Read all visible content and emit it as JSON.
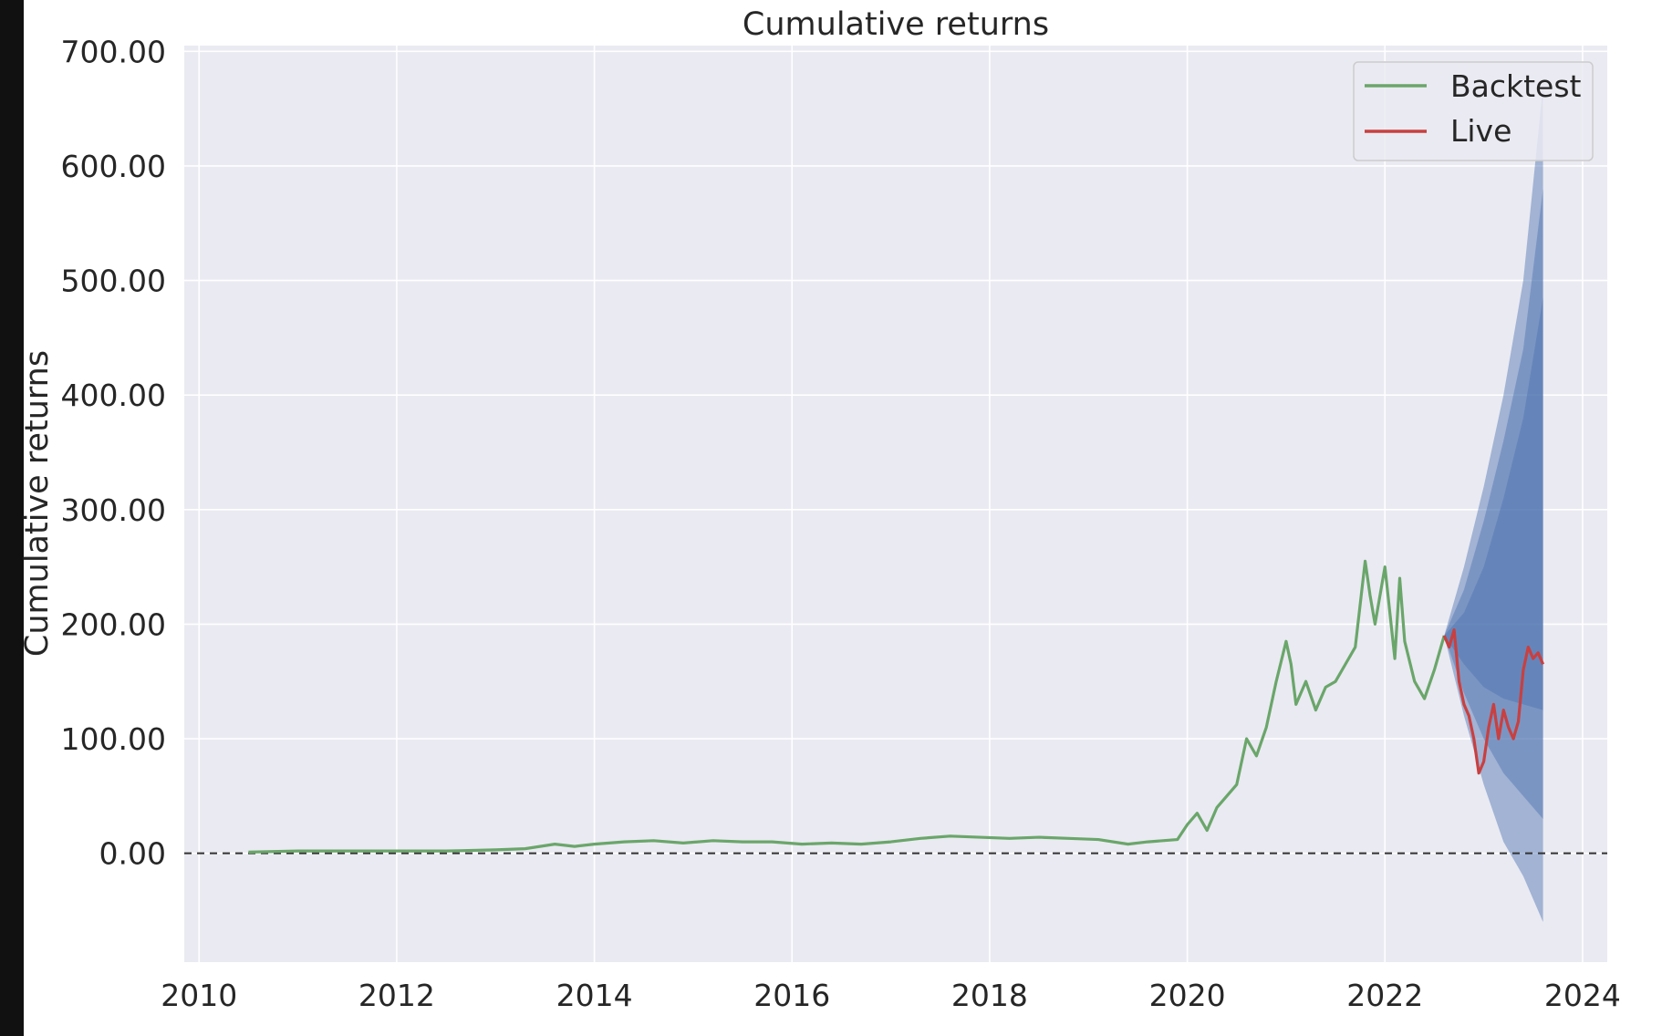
{
  "chart_data": {
    "type": "line",
    "title": "Cumulative returns",
    "xlabel": "",
    "ylabel": "Cumulative returns",
    "xlim": [
      2009.85,
      2024.25
    ],
    "ylim": [
      -95,
      705
    ],
    "x_ticks": [
      2010,
      2012,
      2014,
      2016,
      2018,
      2020,
      2022,
      2024
    ],
    "y_ticks": [
      0,
      100,
      200,
      300,
      400,
      500,
      600,
      700
    ],
    "y_tick_labels": [
      "0.00",
      "100.00",
      "200.00",
      "300.00",
      "400.00",
      "500.00",
      "600.00",
      "700.00"
    ],
    "grid": true,
    "legend_position": "top-right",
    "baseline": 0,
    "colors": {
      "backtest": "#6aa66a",
      "live": "#c84040",
      "cone": "#4c72b0",
      "background": "#eaeaf2",
      "grid": "#ffffff"
    },
    "series": [
      {
        "name": "Backtest",
        "x": [
          2010.5,
          2011.0,
          2011.5,
          2012.0,
          2012.5,
          2013.0,
          2013.3,
          2013.6,
          2013.8,
          2014.0,
          2014.3,
          2014.6,
          2014.9,
          2015.2,
          2015.5,
          2015.8,
          2016.1,
          2016.4,
          2016.7,
          2017.0,
          2017.3,
          2017.6,
          2017.9,
          2018.2,
          2018.5,
          2018.8,
          2019.1,
          2019.4,
          2019.6,
          2019.9,
          2020.0,
          2020.1,
          2020.2,
          2020.3,
          2020.5,
          2020.6,
          2020.7,
          2020.8,
          2020.9,
          2021.0,
          2021.05,
          2021.1,
          2021.2,
          2021.3,
          2021.4,
          2021.5,
          2021.6,
          2021.7,
          2021.8,
          2021.85,
          2021.9,
          2022.0,
          2022.1,
          2022.15,
          2022.2,
          2022.3,
          2022.4,
          2022.5,
          2022.6
        ],
        "y": [
          1,
          2,
          2,
          2,
          2,
          3,
          4,
          8,
          6,
          8,
          10,
          11,
          9,
          11,
          10,
          10,
          8,
          9,
          8,
          10,
          13,
          15,
          14,
          13,
          14,
          13,
          12,
          8,
          10,
          12,
          25,
          35,
          20,
          40,
          60,
          100,
          85,
          110,
          150,
          185,
          165,
          130,
          150,
          125,
          145,
          150,
          165,
          180,
          255,
          225,
          200,
          250,
          170,
          240,
          185,
          150,
          135,
          160,
          190
        ]
      },
      {
        "name": "Live",
        "x": [
          2022.6,
          2022.65,
          2022.7,
          2022.75,
          2022.8,
          2022.85,
          2022.9,
          2022.95,
          2023.0,
          2023.05,
          2023.1,
          2023.15,
          2023.2,
          2023.25,
          2023.3,
          2023.35,
          2023.4,
          2023.45,
          2023.5,
          2023.55,
          2023.6
        ],
        "y": [
          190,
          180,
          195,
          150,
          130,
          120,
          100,
          70,
          80,
          110,
          130,
          100,
          125,
          110,
          100,
          115,
          160,
          180,
          170,
          175,
          165
        ]
      }
    ],
    "cone": {
      "x": [
        2022.6,
        2022.8,
        2023.0,
        2023.2,
        2023.4,
        2023.6
      ],
      "bands": [
        {
          "upper": [
            190,
            250,
            320,
            400,
            500,
            670
          ],
          "lower": [
            190,
            120,
            60,
            10,
            -20,
            -60
          ]
        },
        {
          "upper": [
            190,
            230,
            290,
            360,
            440,
            580
          ],
          "lower": [
            190,
            140,
            100,
            70,
            50,
            30
          ]
        },
        {
          "upper": [
            190,
            210,
            250,
            310,
            380,
            485
          ],
          "lower": [
            190,
            165,
            145,
            135,
            130,
            125
          ]
        }
      ]
    }
  }
}
